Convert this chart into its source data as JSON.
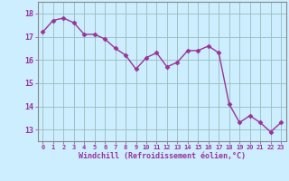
{
  "x": [
    0,
    1,
    2,
    3,
    4,
    5,
    6,
    7,
    8,
    9,
    10,
    11,
    12,
    13,
    14,
    15,
    16,
    17,
    18,
    19,
    20,
    21,
    22,
    23
  ],
  "y": [
    17.2,
    17.7,
    17.8,
    17.6,
    17.1,
    17.1,
    16.9,
    16.5,
    16.2,
    15.6,
    16.1,
    16.3,
    15.7,
    15.9,
    16.4,
    16.4,
    16.6,
    16.3,
    14.1,
    13.3,
    13.6,
    13.3,
    12.9,
    13.3
  ],
  "line_color": "#993399",
  "marker_color": "#993399",
  "bg_color": "#cceeff",
  "grid_color": "#99bbbb",
  "xlabel": "Windchill (Refroidissement éolien,°C)",
  "ylim": [
    12.5,
    18.5
  ],
  "xlim": [
    -0.5,
    23.5
  ],
  "yticks": [
    13,
    14,
    15,
    16,
    17,
    18
  ],
  "xticks": [
    0,
    1,
    2,
    3,
    4,
    5,
    6,
    7,
    8,
    9,
    10,
    11,
    12,
    13,
    14,
    15,
    16,
    17,
    18,
    19,
    20,
    21,
    22,
    23
  ],
  "xtick_labels": [
    "0",
    "1",
    "2",
    "3",
    "4",
    "5",
    "6",
    "7",
    "8",
    "9",
    "10",
    "11",
    "12",
    "13",
    "14",
    "15",
    "16",
    "17",
    "18",
    "19",
    "20",
    "21",
    "22",
    "23"
  ],
  "font_color": "#993399",
  "axis_color": "#888888",
  "marker_size": 2.5,
  "line_width": 1.0
}
